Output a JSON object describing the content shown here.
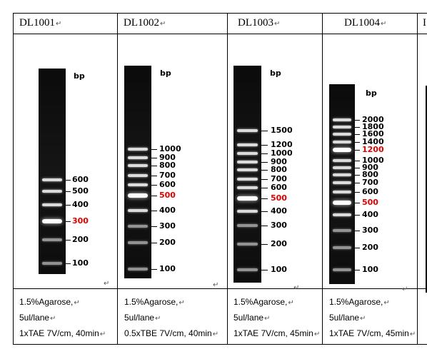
{
  "columns": [
    {
      "title": "DL1001",
      "unit": "bp",
      "bands": [
        {
          "label": "600",
          "highlight": false
        },
        {
          "label": "500",
          "highlight": false
        },
        {
          "label": "400",
          "highlight": false
        },
        {
          "label": "300",
          "highlight": true
        },
        {
          "label": "200",
          "highlight": false
        },
        {
          "label": "100",
          "highlight": false
        }
      ],
      "conditions": [
        "1.5%Agarose,",
        "5ul/lane",
        "1xTAE 7V/cm, 40min"
      ]
    },
    {
      "title": "DL1002",
      "unit": "bp",
      "bands": [
        {
          "label": "1000",
          "highlight": false
        },
        {
          "label": "900",
          "highlight": false
        },
        {
          "label": "800",
          "highlight": false
        },
        {
          "label": "700",
          "highlight": false
        },
        {
          "label": "600",
          "highlight": false
        },
        {
          "label": "500",
          "highlight": true
        },
        {
          "label": "400",
          "highlight": false
        },
        {
          "label": "300",
          "highlight": false
        },
        {
          "label": "200",
          "highlight": false
        },
        {
          "label": "100",
          "highlight": false
        }
      ],
      "conditions": [
        "1.5%Agarose,",
        "5ul/lane",
        "0.5xTBE 7V/cm, 40min"
      ]
    },
    {
      "title": "DL1003",
      "unit": "bp",
      "bands": [
        {
          "label": "1500",
          "highlight": false
        },
        {
          "label": "1200",
          "highlight": false
        },
        {
          "label": "1000",
          "highlight": false
        },
        {
          "label": "900",
          "highlight": false
        },
        {
          "label": "800",
          "highlight": false
        },
        {
          "label": "700",
          "highlight": false
        },
        {
          "label": "600",
          "highlight": false
        },
        {
          "label": "500",
          "highlight": true
        },
        {
          "label": "400",
          "highlight": false
        },
        {
          "label": "300",
          "highlight": false
        },
        {
          "label": "200",
          "highlight": false
        },
        {
          "label": "100",
          "highlight": false
        }
      ],
      "conditions": [
        "1.5%Agarose,",
        "5ul/lane",
        "1xTAE 7V/cm, 45min"
      ]
    },
    {
      "title": "DL1004",
      "unit": "bp",
      "bands": [
        {
          "label": "2000",
          "highlight": false
        },
        {
          "label": "1800",
          "highlight": false
        },
        {
          "label": "1600",
          "highlight": false
        },
        {
          "label": "1400",
          "highlight": false
        },
        {
          "label": "1200",
          "highlight": true
        },
        {
          "label": "1000",
          "highlight": false
        },
        {
          "label": "900",
          "highlight": false
        },
        {
          "label": "800",
          "highlight": false
        },
        {
          "label": "700",
          "highlight": false
        },
        {
          "label": "600",
          "highlight": false
        },
        {
          "label": "500",
          "highlight": true
        },
        {
          "label": "400",
          "highlight": false
        },
        {
          "label": "300",
          "highlight": false
        },
        {
          "label": "200",
          "highlight": false
        },
        {
          "label": "100",
          "highlight": false
        }
      ],
      "conditions": [
        "1.5%Agarose,",
        "5ul/lane",
        "1xTAE 7V/cm, 45min"
      ]
    }
  ],
  "colors": {
    "highlight": "#e00000",
    "gel": "#111111",
    "band": "#ffffff"
  }
}
